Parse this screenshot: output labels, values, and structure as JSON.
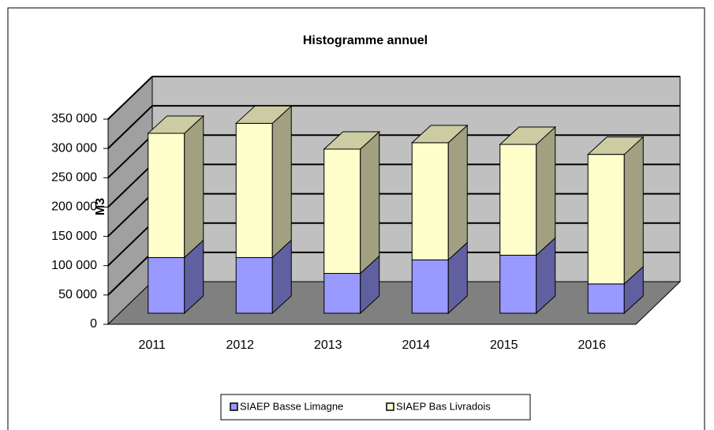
{
  "chart_data": {
    "type": "bar3d_stacked",
    "title": "Histogramme annuel",
    "y_label": "M3",
    "categories": [
      "2011",
      "2012",
      "2013",
      "2014",
      "2015",
      "2016"
    ],
    "series": [
      {
        "name": "SIAEP Basse Limagne",
        "color": "#9999ff",
        "values": [
          95000,
          95000,
          68000,
          91000,
          99000,
          50000
        ]
      },
      {
        "name": "SIAEP Bas Livradois",
        "color": "#ffffcc",
        "values": [
          212000,
          229000,
          212000,
          200000,
          189000,
          221000
        ]
      }
    ],
    "ylim": [
      0,
      350000
    ],
    "yticks": [
      0,
      {
        "value": 50000,
        "label": "50 000"
      },
      {
        "value": 100000,
        "label": "100 000"
      },
      {
        "value": 150000,
        "label": "150 000"
      },
      {
        "value": 200000,
        "label": "200 000"
      },
      {
        "value": 250000,
        "label": "250 000"
      },
      {
        "value": 300000,
        "label": "300 000"
      },
      {
        "value": 350000,
        "label": "350 000"
      }
    ],
    "grid": true,
    "legend": "bottom"
  }
}
